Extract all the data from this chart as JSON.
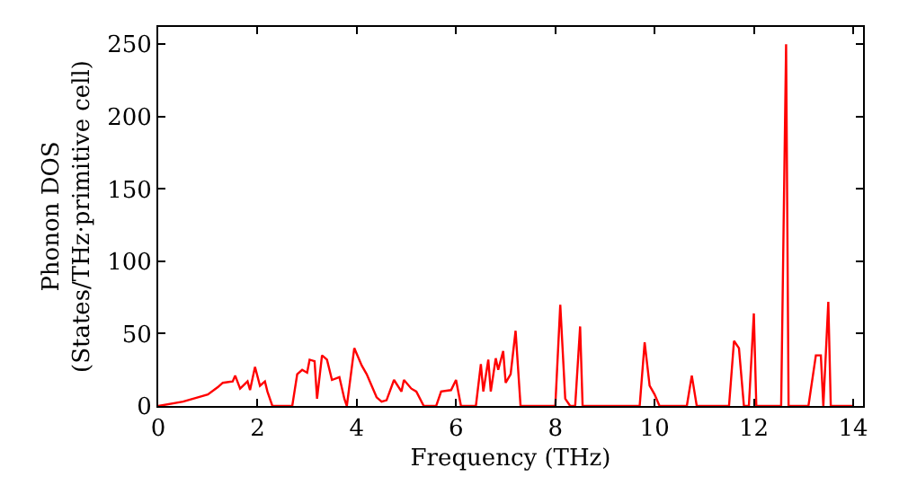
{
  "chart_data": {
    "type": "line",
    "xlabel": "Frequency (THz)",
    "ylabel": "Phonon DOS\n(States/THz·primitive cell)",
    "xlim": [
      0,
      14.2
    ],
    "ylim": [
      0,
      262
    ],
    "xticks": [
      0,
      2,
      4,
      6,
      8,
      10,
      12,
      14
    ],
    "yticks": [
      0,
      50,
      100,
      150,
      200,
      250
    ],
    "series": [
      {
        "color": "#ff0000",
        "x": [
          0,
          0.5,
          0.8,
          1.0,
          1.2,
          1.3,
          1.5,
          1.55,
          1.65,
          1.8,
          1.85,
          1.95,
          2.05,
          2.15,
          2.2,
          2.3,
          2.7,
          2.8,
          2.9,
          3.0,
          3.05,
          3.15,
          3.2,
          3.3,
          3.4,
          3.5,
          3.65,
          3.75,
          3.8,
          3.95,
          4.1,
          4.2,
          4.4,
          4.5,
          4.6,
          4.75,
          4.9,
          4.95,
          5.1,
          5.2,
          5.35,
          5.6,
          5.7,
          5.9,
          6.0,
          6.1,
          6.4,
          6.5,
          6.55,
          6.65,
          6.7,
          6.8,
          6.85,
          6.95,
          7.0,
          7.1,
          7.2,
          7.3,
          8.0,
          8.1,
          8.2,
          8.3,
          8.4,
          8.5,
          8.55,
          9.7,
          9.8,
          9.9,
          10.0,
          10.1,
          10.65,
          10.75,
          10.85,
          11.5,
          11.6,
          11.7,
          11.8,
          11.9,
          12.0,
          12.05,
          12.55,
          12.65,
          12.7,
          13.1,
          13.25,
          13.35,
          13.4,
          13.5,
          13.55,
          14.0
        ],
        "values": [
          0,
          3,
          6,
          8,
          13,
          16,
          17,
          21,
          12,
          17,
          11,
          27,
          14,
          17,
          10,
          0,
          0,
          22,
          25,
          23,
          32,
          31,
          5,
          35,
          32,
          18,
          20,
          5,
          0,
          40,
          28,
          22,
          6,
          3,
          4,
          18,
          10,
          18,
          12,
          10,
          0,
          0,
          10,
          11,
          18,
          0,
          0,
          29,
          10,
          32,
          10,
          33,
          25,
          38,
          16,
          22,
          52,
          0,
          0,
          70,
          5,
          0,
          0,
          55,
          0,
          0,
          44,
          14,
          8,
          0,
          0,
          21,
          0,
          0,
          45,
          40,
          0,
          0,
          64,
          0,
          0,
          250,
          0,
          0,
          35,
          35,
          0,
          72,
          0,
          0
        ]
      }
    ]
  }
}
